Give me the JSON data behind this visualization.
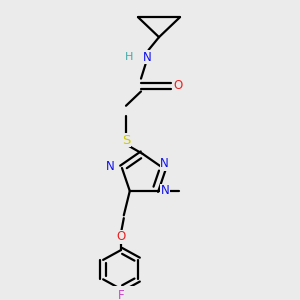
{
  "background_color": "#ebebeb",
  "fig_width": 3.0,
  "fig_height": 3.0,
  "dpi": 100,
  "colors": {
    "N": "#1010ee",
    "O": "#ee2020",
    "S": "#cccc00",
    "F": "#cc44cc",
    "C": "#000000",
    "HN": "#44aaaa",
    "bond": "#000000"
  },
  "lw": 1.6,
  "fs": 8.5
}
